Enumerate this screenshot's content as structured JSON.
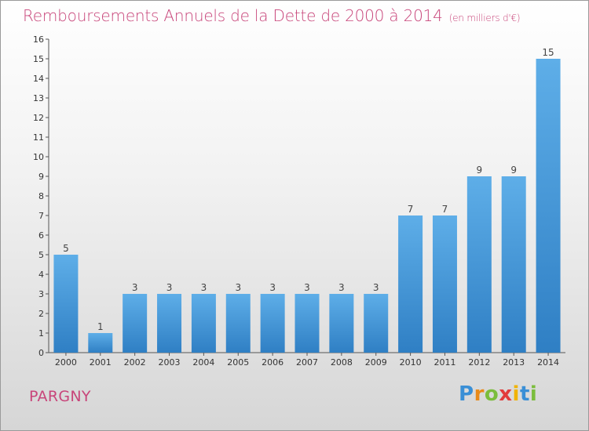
{
  "title": "Remboursements Annuels de la Dette de 2000 à 2014",
  "unit": "(en milliers d'€)",
  "commune": "PARGNY",
  "logo": {
    "text": "Proxiti"
  },
  "colors": {
    "bar": "#3d8fd4",
    "bar_light": "#5eaee8",
    "title": "#c8457a"
  },
  "chart_data": {
    "type": "bar",
    "title": "Remboursements Annuels de la Dette de 2000 à 2014",
    "subtitle": "(en milliers d'€)",
    "categories": [
      "2000",
      "2001",
      "2002",
      "2003",
      "2004",
      "2005",
      "2006",
      "2007",
      "2008",
      "2009",
      "2010",
      "2011",
      "2012",
      "2013",
      "2014"
    ],
    "values": [
      5,
      1,
      3,
      3,
      3,
      3,
      3,
      3,
      3,
      3,
      7,
      7,
      9,
      9,
      15
    ],
    "ylim": [
      0,
      16
    ],
    "yticks": [
      0,
      1,
      2,
      3,
      4,
      5,
      6,
      7,
      8,
      9,
      10,
      11,
      12,
      13,
      14,
      15,
      16
    ],
    "grid": false,
    "legend": "none"
  }
}
